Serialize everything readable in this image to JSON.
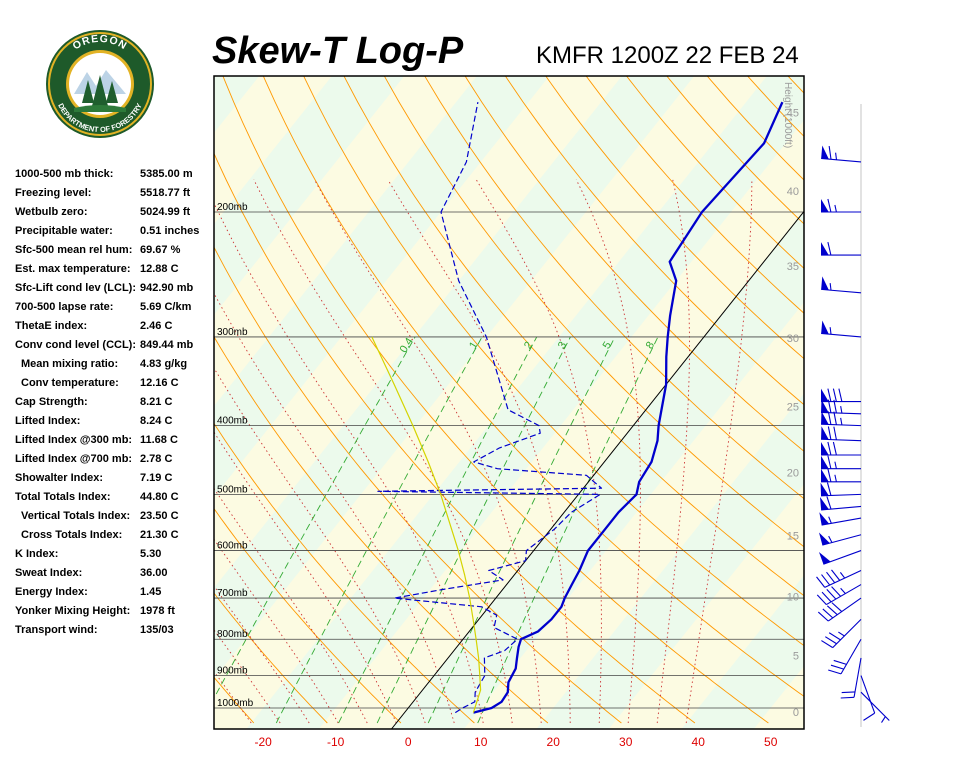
{
  "header": {
    "title": "Skew-T Log-P",
    "subtitle": "KMFR 1200Z 22 FEB 24"
  },
  "logo": {
    "ring_top": "OREGON",
    "ring_bottom": "DEPARTMENT OF FORESTRY",
    "colors": {
      "ring": "#1e5a2a",
      "gold": "#e2b325",
      "tree": "#1f5e2e"
    }
  },
  "indices": [
    {
      "label": "1000-500 mb thick:",
      "value": "5385.00 m",
      "indent": false
    },
    {
      "label": "Freezing level:",
      "value": "5518.77 ft",
      "indent": false
    },
    {
      "label": "Wetbulb zero:",
      "value": "5024.99 ft",
      "indent": false
    },
    {
      "label": "Precipitable water:",
      "value": "0.51 inches",
      "indent": false
    },
    {
      "label": "Sfc-500 mean rel hum:",
      "value": "69.67 %",
      "indent": false
    },
    {
      "label": "Est. max temperature:",
      "value": "12.88 C",
      "indent": false
    },
    {
      "label": "Sfc-Lift cond lev (LCL):",
      "value": "942.90 mb",
      "indent": false
    },
    {
      "label": "700-500 lapse rate:",
      "value": "5.69 C/km",
      "indent": false
    },
    {
      "label": "ThetaE index:",
      "value": "2.46 C",
      "indent": false
    },
    {
      "label": "Conv cond level (CCL):",
      "value": "849.44 mb",
      "indent": false
    },
    {
      "label": "Mean mixing ratio:",
      "value": "4.83 g/kg",
      "indent": true
    },
    {
      "label": "Conv temperature:",
      "value": "12.16 C",
      "indent": true
    },
    {
      "label": "Cap Strength:",
      "value": "8.21 C",
      "indent": false
    },
    {
      "label": "Lifted Index:",
      "value": "8.24 C",
      "indent": false
    },
    {
      "label": "Lifted Index @300 mb:",
      "value": "11.68 C",
      "indent": false
    },
    {
      "label": "Lifted Index @700 mb:",
      "value": "2.78 C",
      "indent": false
    },
    {
      "label": "Showalter Index:",
      "value": "7.19 C",
      "indent": false
    },
    {
      "label": "Total Totals Index:",
      "value": "44.80 C",
      "indent": false
    },
    {
      "label": "Vertical Totals Index:",
      "value": "23.50 C",
      "indent": true
    },
    {
      "label": "Cross Totals Index:",
      "value": "21.30 C",
      "indent": true
    },
    {
      "label": "K Index:",
      "value": "5.30",
      "indent": false
    },
    {
      "label": "Sweat Index:",
      "value": "36.00",
      "indent": false
    },
    {
      "label": "Energy Index:",
      "value": "1.45",
      "indent": false
    },
    {
      "label": "Yonker Mixing Height:",
      "value": "1978 ft",
      "indent": false
    },
    {
      "label": "Transport wind:",
      "value": "135/03",
      "indent": false
    }
  ],
  "chart_data": {
    "type": "line",
    "title": "Skew-T Log-P",
    "subtitle": "KMFR 1200Z 22 FEB 24",
    "grid": true,
    "x_ticks": [
      -20,
      -10,
      0,
      10,
      20,
      30,
      40,
      50
    ],
    "pressure_levels": [
      {
        "p": 200,
        "label": "200mb"
      },
      {
        "p": 300,
        "label": "300mb"
      },
      {
        "p": 400,
        "label": "400mb"
      },
      {
        "p": 500,
        "label": "500mb"
      },
      {
        "p": 600,
        "label": "600mb"
      },
      {
        "p": 700,
        "label": "700mb"
      },
      {
        "p": 800,
        "label": "800mb"
      },
      {
        "p": 900,
        "label": "900mb"
      },
      {
        "p": 1000,
        "label": "1000mb"
      }
    ],
    "height_axis": {
      "label": "Height (1000ft)",
      "ticks": [
        0,
        5,
        10,
        15,
        20,
        25,
        30,
        35,
        40,
        45,
        50
      ]
    },
    "mixing_ratio_labels": [
      "0.4",
      "1",
      "2",
      "3",
      "5",
      "8"
    ],
    "series": [
      {
        "name": "Temperature",
        "color": "#0000cc",
        "style": "solid",
        "points": [
          [
            1015,
            9.5
          ],
          [
            1000,
            11.5
          ],
          [
            980,
            12.2
          ],
          [
            950,
            12.0
          ],
          [
            920,
            11.0
          ],
          [
            880,
            10.5
          ],
          [
            850,
            9.5
          ],
          [
            820,
            8.5
          ],
          [
            800,
            8.0
          ],
          [
            780,
            9.5
          ],
          [
            750,
            10.0
          ],
          [
            720,
            10.0
          ],
          [
            700,
            9.5
          ],
          [
            670,
            9.0
          ],
          [
            640,
            8.5
          ],
          [
            600,
            7.5
          ],
          [
            560,
            7.5
          ],
          [
            530,
            7.5
          ],
          [
            500,
            8.0
          ],
          [
            480,
            7.0
          ],
          [
            450,
            6.5
          ],
          [
            420,
            5.0
          ],
          [
            400,
            3.5
          ],
          [
            350,
            0.0
          ],
          [
            320,
            -3.0
          ],
          [
            300,
            -5.0
          ],
          [
            280,
            -7.0
          ],
          [
            250,
            -10.0
          ],
          [
            235,
            -13.0
          ],
          [
            200,
            -14.0
          ],
          [
            160,
            -13.0
          ],
          [
            140,
            -15.0
          ]
        ]
      },
      {
        "name": "Dewpoint",
        "color": "#0000cc",
        "style": "dashed",
        "points": [
          [
            1015,
            7.0
          ],
          [
            1000,
            7.5
          ],
          [
            980,
            8.5
          ],
          [
            950,
            7.5
          ],
          [
            900,
            7.0
          ],
          [
            850,
            5.0
          ],
          [
            830,
            7.0
          ],
          [
            800,
            7.5
          ],
          [
            770,
            3.0
          ],
          [
            740,
            2.0
          ],
          [
            720,
            -1.0
          ],
          [
            700,
            -14.0
          ],
          [
            680,
            -8.0
          ],
          [
            660,
            -1.0
          ],
          [
            640,
            -4.0
          ],
          [
            620,
            0.0
          ],
          [
            600,
            -1.0
          ],
          [
            560,
            0.5
          ],
          [
            530,
            1.0
          ],
          [
            500,
            3.0
          ],
          [
            495,
            -28.0
          ],
          [
            490,
            2.5
          ],
          [
            470,
            -1.0
          ],
          [
            460,
            -14.0
          ],
          [
            450,
            -18.0
          ],
          [
            430,
            -16.0
          ],
          [
            410,
            -12.0
          ],
          [
            400,
            -13.0
          ],
          [
            380,
            -19.0
          ],
          [
            300,
            -30.0
          ],
          [
            250,
            -40.0
          ],
          [
            200,
            -50.0
          ],
          [
            170,
            -52.0
          ],
          [
            140,
            -57.0
          ]
        ]
      },
      {
        "name": "Parcel",
        "color": "#d4d400",
        "style": "solid",
        "points": [
          [
            1015,
            9.5
          ],
          [
            943,
            8.0
          ],
          [
            900,
            6.3
          ],
          [
            850,
            4.2
          ],
          [
            800,
            1.8
          ],
          [
            750,
            -0.8
          ],
          [
            700,
            -3.6
          ],
          [
            650,
            -6.8
          ],
          [
            600,
            -10.4
          ],
          [
            550,
            -14.5
          ],
          [
            500,
            -19.0
          ],
          [
            450,
            -24.3
          ],
          [
            400,
            -30.4
          ],
          [
            350,
            -37.5
          ],
          [
            300,
            -45.8
          ]
        ]
      }
    ],
    "winds": [
      {
        "p": 950,
        "dir": 135,
        "kt": 5
      },
      {
        "p": 900,
        "dir": 160,
        "kt": 10
      },
      {
        "p": 850,
        "dir": 190,
        "kt": 20
      },
      {
        "p": 800,
        "dir": 210,
        "kt": 30
      },
      {
        "p": 750,
        "dir": 225,
        "kt": 35
      },
      {
        "p": 700,
        "dir": 235,
        "kt": 40
      },
      {
        "p": 670,
        "dir": 240,
        "kt": 45
      },
      {
        "p": 640,
        "dir": 245,
        "kt": 45
      },
      {
        "p": 600,
        "dir": 250,
        "kt": 50
      },
      {
        "p": 570,
        "dir": 255,
        "kt": 55
      },
      {
        "p": 540,
        "dir": 260,
        "kt": 55
      },
      {
        "p": 520,
        "dir": 265,
        "kt": 60
      },
      {
        "p": 500,
        "dir": 268,
        "kt": 60
      },
      {
        "p": 480,
        "dir": 270,
        "kt": 65
      },
      {
        "p": 460,
        "dir": 270,
        "kt": 65
      },
      {
        "p": 440,
        "dir": 270,
        "kt": 70
      },
      {
        "p": 420,
        "dir": 272,
        "kt": 70
      },
      {
        "p": 400,
        "dir": 272,
        "kt": 75
      },
      {
        "p": 385,
        "dir": 272,
        "kt": 75
      },
      {
        "p": 370,
        "dir": 270,
        "kt": 80
      },
      {
        "p": 300,
        "dir": 275,
        "kt": 55
      },
      {
        "p": 260,
        "dir": 275,
        "kt": 55
      },
      {
        "p": 230,
        "dir": 270,
        "kt": 60
      },
      {
        "p": 200,
        "dir": 270,
        "kt": 65
      },
      {
        "p": 170,
        "dir": 275,
        "kt": 65
      }
    ],
    "colors": {
      "isotherm_label": "#dd0000",
      "dry_adiabat": "#ff9900",
      "moist_adiabat": "#cc3333",
      "mixing_ratio": "#33aa33",
      "height_label": "#9a9a9a",
      "band_green": "#ecfaec",
      "band_yellow": "#fcfbe2",
      "pressure_line": "#444444",
      "zero_isotherm": "#000000",
      "wind_barb": "#0000cc"
    }
  }
}
